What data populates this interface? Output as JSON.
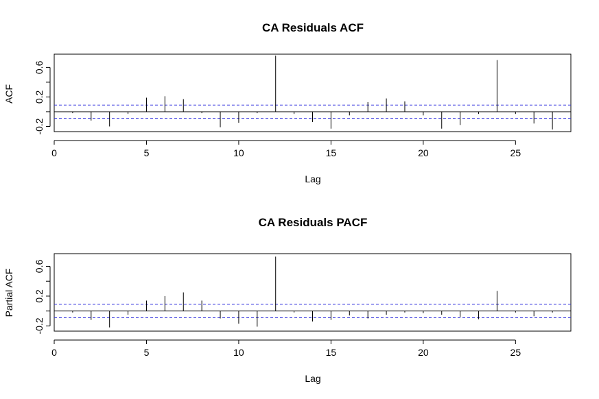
{
  "chart_data": [
    {
      "type": "bar",
      "subtype": "acf",
      "title": "CA Residuals ACF",
      "xlabel": "Lag",
      "ylabel": "ACF",
      "xlim": [
        0,
        28
      ],
      "ylim": [
        -0.27,
        0.78
      ],
      "xticks": [
        "0",
        "5",
        "10",
        "15",
        "20",
        "25"
      ],
      "yticks": [
        "-0.2",
        "0.2",
        "0.6"
      ],
      "ci": [
        0.09,
        -0.09
      ],
      "lags": [
        1,
        2,
        3,
        4,
        5,
        6,
        7,
        8,
        9,
        10,
        11,
        12,
        13,
        14,
        15,
        16,
        17,
        18,
        19,
        20,
        21,
        22,
        23,
        24,
        25,
        26,
        27
      ],
      "values": [
        -0.02,
        -0.12,
        -0.2,
        -0.03,
        0.19,
        0.21,
        0.17,
        -0.02,
        -0.21,
        -0.15,
        -0.02,
        0.76,
        -0.03,
        -0.14,
        -0.23,
        -0.05,
        0.13,
        0.18,
        0.14,
        -0.05,
        -0.23,
        -0.18,
        -0.03,
        0.7,
        -0.03,
        -0.16,
        -0.24
      ]
    },
    {
      "type": "bar",
      "subtype": "pacf",
      "title": "CA Residuals PACF",
      "xlabel": "Lag",
      "ylabel": "Partial ACF",
      "xlim": [
        0,
        28
      ],
      "ylim": [
        -0.27,
        0.77
      ],
      "xticks": [
        "0",
        "5",
        "10",
        "15",
        "20",
        "25"
      ],
      "yticks": [
        "-0.2",
        "0.2",
        "0.6"
      ],
      "ci": [
        0.09,
        -0.09
      ],
      "lags": [
        1,
        2,
        3,
        4,
        5,
        6,
        7,
        8,
        9,
        10,
        11,
        12,
        13,
        14,
        15,
        16,
        17,
        18,
        19,
        20,
        21,
        22,
        23,
        24,
        25,
        26,
        27
      ],
      "values": [
        -0.02,
        -0.12,
        -0.22,
        -0.05,
        0.14,
        0.2,
        0.25,
        0.14,
        -0.1,
        -0.17,
        -0.21,
        0.73,
        -0.02,
        -0.14,
        -0.12,
        -0.06,
        -0.1,
        -0.05,
        -0.02,
        -0.03,
        -0.05,
        -0.08,
        -0.11,
        0.27,
        -0.02,
        -0.07,
        -0.02
      ]
    }
  ]
}
